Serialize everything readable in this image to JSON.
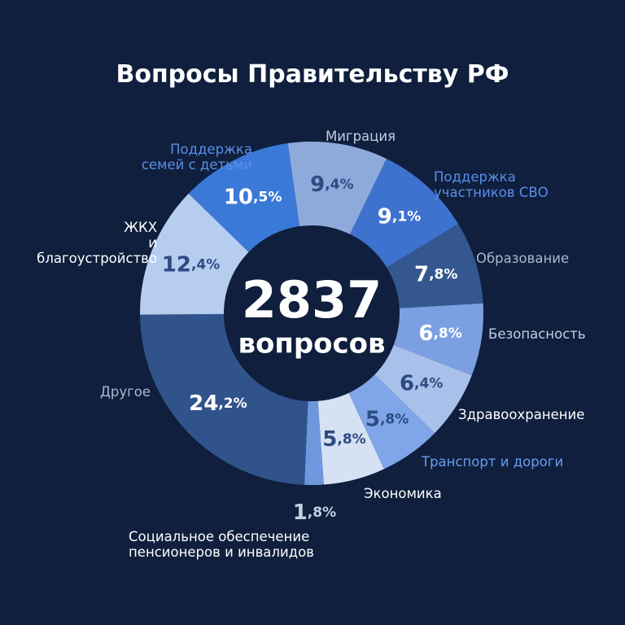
{
  "chart_data": {
    "type": "donut",
    "title": "Вопросы Правительству РФ",
    "center_value": "2837",
    "center_label": "вопросов",
    "categories": [
      "Миграция",
      "Поддержка\nучастников СВО",
      "Образование",
      "Безопасность",
      "Здравоохранение",
      "Транспорт и дороги",
      "Экономика",
      "Социальное обеспечение\nпенсионеров и инвалидов",
      "Другое",
      "ЖКХ\nи\nблагоустройство",
      "Поддержка\nсемей с детьми"
    ],
    "values": [
      9.4,
      9.1,
      7.8,
      6.8,
      6.4,
      5.8,
      5.8,
      1.8,
      24.2,
      12.4,
      10.5
    ],
    "value_labels": [
      "9,4%",
      "9,1%",
      "7,8%",
      "6,8%",
      "6,4%",
      "5,8%",
      "5,8%",
      "1,8%",
      "24,2%",
      "12,4%",
      "10,5%"
    ],
    "colors": [
      "#8eaadb",
      "#3d72cf",
      "#34578f",
      "#7c9fe2",
      "#a9c1ea",
      "#80a5e8",
      "#d6e1f4",
      "#6f97dd",
      "#31538b",
      "#b6cdf0",
      "#3b79d9"
    ]
  }
}
